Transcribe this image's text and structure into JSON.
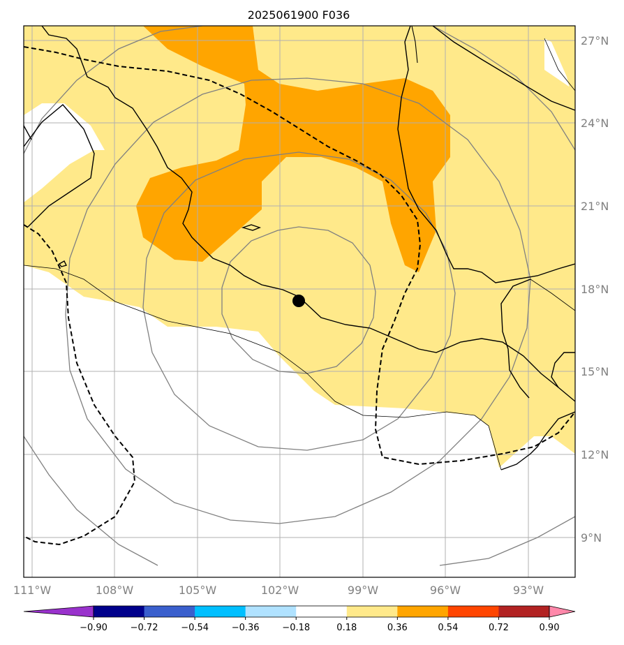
{
  "title": "2025061900 F036",
  "map": {
    "lon_range": [
      -111.3,
      -91.2
    ],
    "lat_range": [
      7.6,
      27.6
    ],
    "lon_ticks": [
      -111,
      -108,
      -105,
      -102,
      -99,
      -96,
      -93
    ],
    "lat_ticks": [
      9,
      12,
      15,
      18,
      21,
      24,
      27
    ],
    "lon_labels": [
      "111°W",
      "108°W",
      "105°W",
      "102°W",
      "99°W",
      "96°W",
      "93°W"
    ],
    "lat_labels": [
      "9°N",
      "12°N",
      "15°N",
      "18°N",
      "21°N",
      "24°N",
      "27°N"
    ],
    "gridlines": true,
    "center_marker": {
      "lon": -101.3,
      "lat": 17.5
    },
    "range_rings_deg": [
      2.8,
      5.6,
      8.4,
      11.2
    ]
  },
  "colorbar": {
    "ticks": [
      "−0.90",
      "−0.72",
      "−0.54",
      "−0.36",
      "−0.18",
      "0.18",
      "0.36",
      "0.54",
      "0.72",
      "0.90"
    ],
    "colors": [
      "#9932cc",
      "#00008b",
      "#3a5fcd",
      "#00bfff",
      "#b0e2ff",
      "#ffffff",
      "#ffe98a",
      "#ffa500",
      "#ff4500",
      "#b22222",
      "#ff88aa"
    ],
    "extend": "both"
  },
  "colors": {
    "low_positive": "#ffe98a",
    "mid_positive": "#ffa500",
    "coastline": "#000000",
    "grid": "#b0b0b0",
    "rings": "#808080"
  }
}
